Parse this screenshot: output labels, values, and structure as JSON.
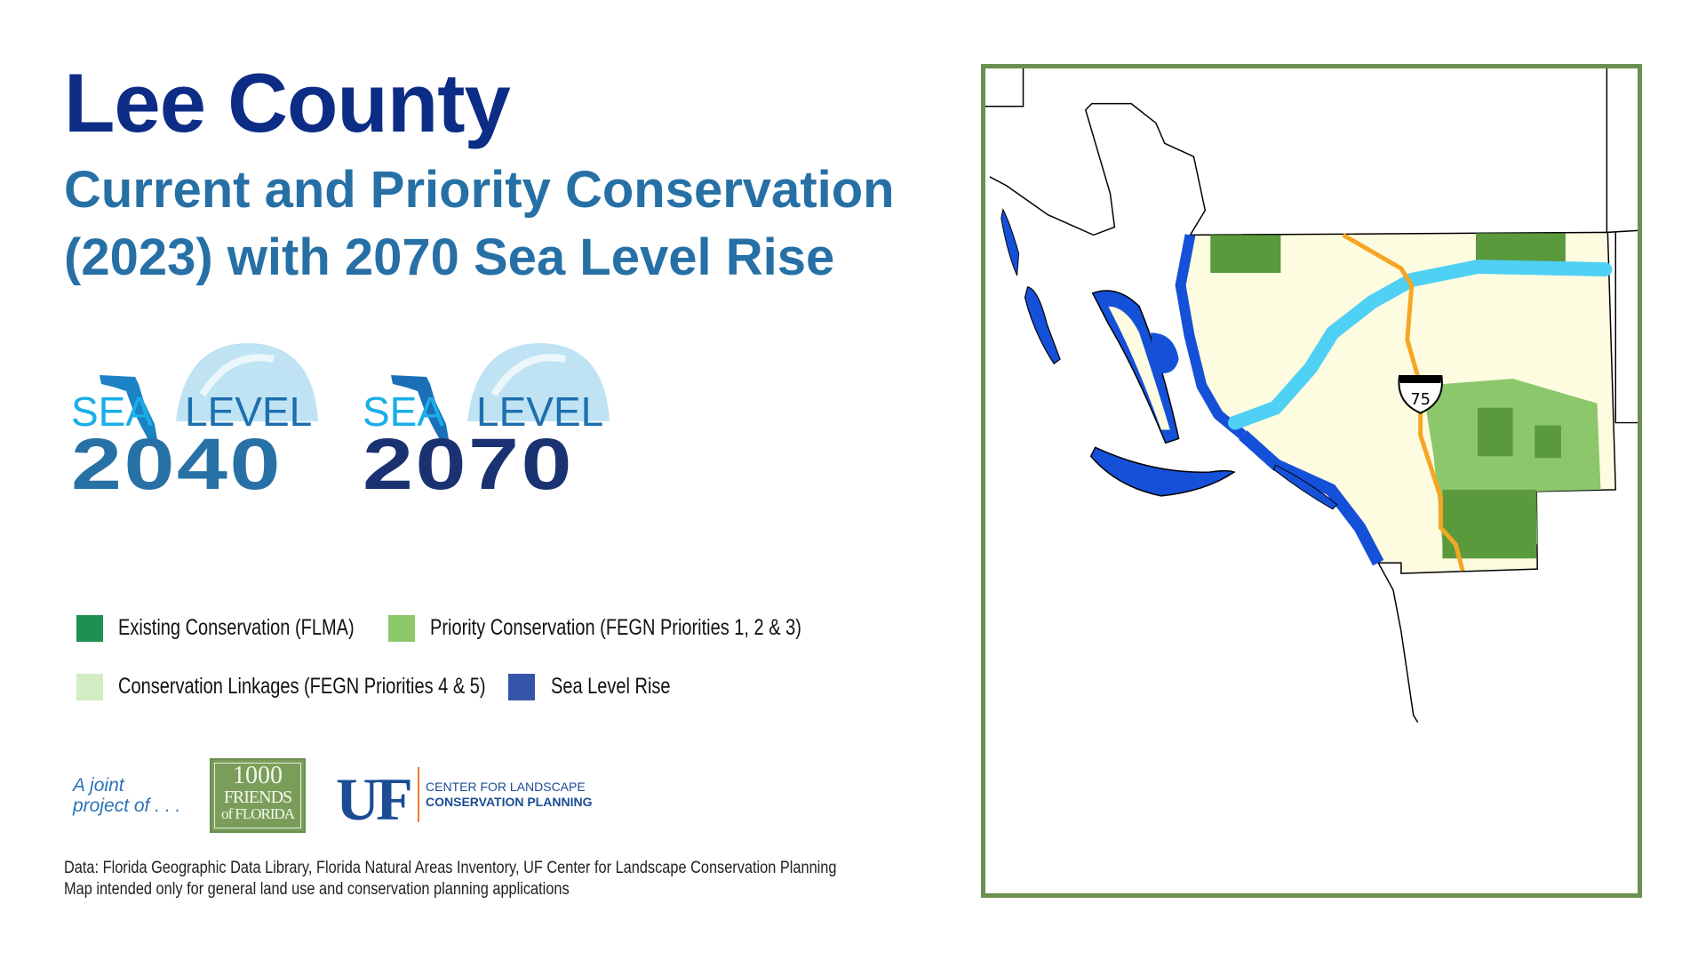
{
  "header": {
    "title": "Lee County",
    "subtitle_line1": "Current and Priority Conservation",
    "subtitle_line2": "(2023) with 2070 Sea Level Rise"
  },
  "logos": [
    {
      "sea": "SEA",
      "level": "LEVEL",
      "year": "2040",
      "year_color": "#2771a6"
    },
    {
      "sea": "SEA",
      "level": "LEVEL",
      "year": "2070",
      "year_color": "#1a3272"
    }
  ],
  "legend": [
    {
      "label": "Existing Conservation (FLMA)",
      "color": "#1e9150"
    },
    {
      "label": "Priority Conservation (FEGN Priorities 1, 2 & 3)",
      "color": "#8cc76c"
    },
    {
      "label": "Conservation Linkages (FEGN Priorities 4 & 5)",
      "color": "#d2edc4"
    },
    {
      "label": "Sea Level Rise",
      "color": "#3556a8"
    }
  ],
  "credits": {
    "joint_line1": "A joint",
    "joint_line2": "project of . . .",
    "friends_line1": "1000",
    "friends_line2": "FRIENDS",
    "friends_line3": "of FLORIDA",
    "uf": "UF",
    "clcp_line1": "CENTER FOR LANDSCAPE",
    "clcp_line2": "CONSERVATION PLANNING"
  },
  "notes": {
    "data": "Data: Florida Geographic Data Library, Florida Natural Areas Inventory, UF Center for Landscape Conservation Planning",
    "disclaimer": "Map intended only for general land use and conservation planning applications"
  },
  "map": {
    "highway_label": "75",
    "colors": {
      "base": "#fdfbe0",
      "existing": "#5a9a3c",
      "priority": "#8cc76c",
      "slr": "#1550d8",
      "river": "#4fd0f5",
      "highway": "#f5a623",
      "frame": "#6a8f4e"
    }
  }
}
